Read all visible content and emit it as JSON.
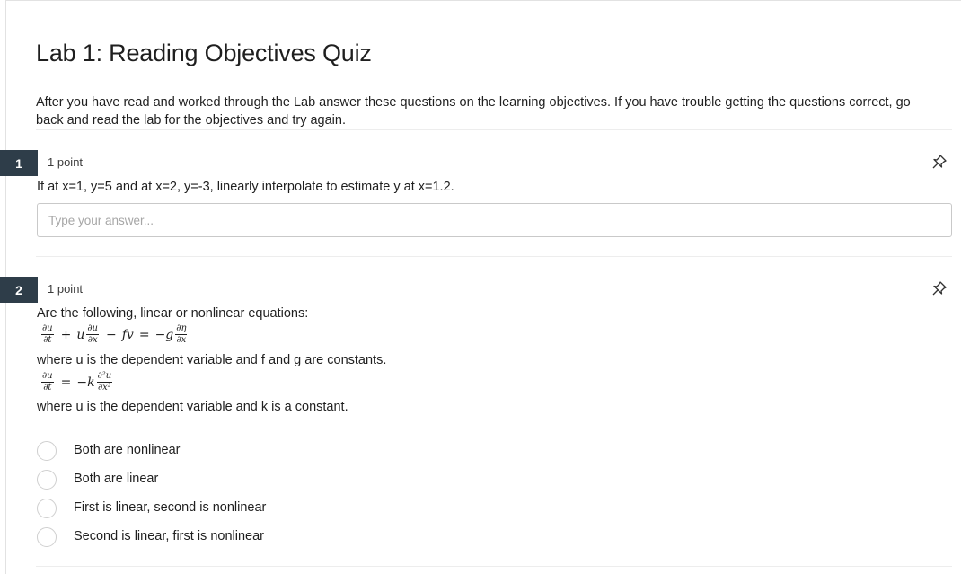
{
  "quiz": {
    "title": "Lab 1: Reading Objectives Quiz",
    "intro": "After you have read and worked through the Lab answer these questions on the learning objectives.  If you have trouble getting the questions correct, go back and read the lab for the objectives and try again."
  },
  "questions": [
    {
      "number": "1",
      "points": "1 point",
      "text": "If at x=1, y=5 and at x=2, y=-3, linearly interpolate to estimate y at x=1.2.",
      "answer_placeholder": "Type your answer...",
      "answer_value": ""
    },
    {
      "number": "2",
      "points": "1 point",
      "text": "Are the following, linear or nonlinear equations:",
      "eq1_note": "where u is the dependent variable and f and g are constants.",
      "eq2_note": "where u is the dependent variable and k is a constant.",
      "options": [
        "Both are nonlinear",
        "Both are linear",
        "First is linear, second is nonlinear",
        "Second is linear, first is nonlinear"
      ]
    }
  ],
  "icons": {
    "pin": "pushpin-icon"
  }
}
